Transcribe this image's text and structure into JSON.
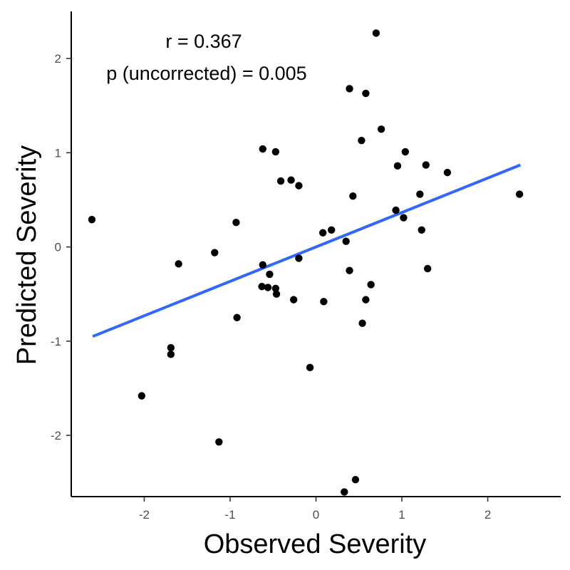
{
  "chart_data": {
    "type": "scatter",
    "xlabel": "Observed Severity",
    "ylabel": "Predicted Severity",
    "xlim": [
      -2.85,
      2.85
    ],
    "ylim": [
      -2.65,
      2.5
    ],
    "x_ticks": [
      -2,
      -1,
      0,
      1,
      2
    ],
    "y_ticks": [
      -2,
      -1,
      0,
      1,
      2
    ],
    "x_tick_labels": [
      "-2",
      "-1",
      "0",
      "1",
      "2"
    ],
    "y_tick_labels": [
      "-2",
      "-1",
      "0",
      "1",
      "2"
    ],
    "grid": false,
    "annotations": [
      "r = 0.367",
      "p (uncorrected) = 0.005"
    ],
    "point_color": "#000000",
    "line_color": "#3366FF",
    "trend_line": {
      "x": [
        -2.6,
        2.38
      ],
      "y": [
        -0.95,
        0.87
      ]
    },
    "points": [
      {
        "x": -2.61,
        "y": 0.29
      },
      {
        "x": -2.03,
        "y": -1.58
      },
      {
        "x": -1.69,
        "y": -1.07
      },
      {
        "x": -1.69,
        "y": -1.14
      },
      {
        "x": -1.6,
        "y": -0.18
      },
      {
        "x": -1.18,
        "y": -0.06
      },
      {
        "x": -1.13,
        "y": -2.07
      },
      {
        "x": -0.93,
        "y": 0.26
      },
      {
        "x": -0.92,
        "y": -0.75
      },
      {
        "x": -0.62,
        "y": 1.04
      },
      {
        "x": -0.62,
        "y": -0.19
      },
      {
        "x": -0.63,
        "y": -0.42
      },
      {
        "x": -0.56,
        "y": -0.43
      },
      {
        "x": -0.54,
        "y": -0.29
      },
      {
        "x": -0.47,
        "y": 1.01
      },
      {
        "x": -0.47,
        "y": -0.44
      },
      {
        "x": -0.46,
        "y": -0.5
      },
      {
        "x": -0.41,
        "y": 0.7
      },
      {
        "x": -0.29,
        "y": 0.71
      },
      {
        "x": -0.26,
        "y": -0.56
      },
      {
        "x": -0.2,
        "y": 0.65
      },
      {
        "x": -0.2,
        "y": -0.12
      },
      {
        "x": -0.07,
        "y": -1.28
      },
      {
        "x": 0.08,
        "y": 0.15
      },
      {
        "x": 0.09,
        "y": -0.58
      },
      {
        "x": 0.18,
        "y": 0.18
      },
      {
        "x": 0.33,
        "y": -2.6
      },
      {
        "x": 0.35,
        "y": 0.06
      },
      {
        "x": 0.39,
        "y": 1.68
      },
      {
        "x": 0.39,
        "y": -0.25
      },
      {
        "x": 0.43,
        "y": 0.54
      },
      {
        "x": 0.46,
        "y": -2.47
      },
      {
        "x": 0.53,
        "y": 1.13
      },
      {
        "x": 0.54,
        "y": -0.81
      },
      {
        "x": 0.58,
        "y": 1.63
      },
      {
        "x": 0.58,
        "y": -0.56
      },
      {
        "x": 0.64,
        "y": -0.4
      },
      {
        "x": 0.7,
        "y": 2.27
      },
      {
        "x": 0.76,
        "y": 1.25
      },
      {
        "x": 0.93,
        "y": 0.39
      },
      {
        "x": 0.95,
        "y": 0.86
      },
      {
        "x": 1.02,
        "y": 0.31
      },
      {
        "x": 1.04,
        "y": 1.01
      },
      {
        "x": 1.21,
        "y": 0.56
      },
      {
        "x": 1.23,
        "y": 0.18
      },
      {
        "x": 1.28,
        "y": 0.87
      },
      {
        "x": 1.3,
        "y": -0.23
      },
      {
        "x": 1.53,
        "y": 0.79
      },
      {
        "x": 2.37,
        "y": 0.56
      }
    ]
  }
}
